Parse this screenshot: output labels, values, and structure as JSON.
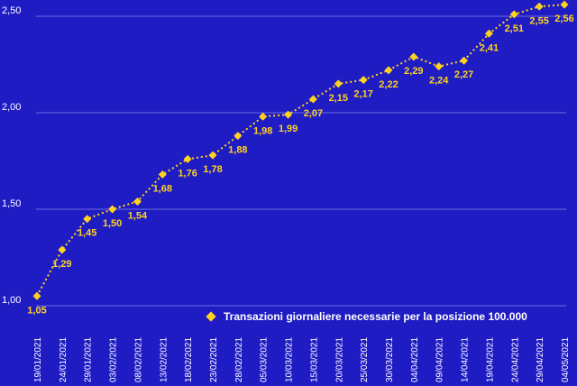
{
  "colors": {
    "background": "#1f1cc4",
    "series": "#ffd21f",
    "text": "#ffffff",
    "grid": "#6f6ce4"
  },
  "chart_data": {
    "type": "line",
    "title": "",
    "xlabel": "",
    "ylabel": "",
    "ylim": [
      1.0,
      2.5
    ],
    "yticks": [
      "1,00",
      "1,50",
      "2,00",
      "2,50"
    ],
    "grid": true,
    "legend_position": "bottom-right",
    "categories": [
      "19/01/2021",
      "24/01/2021",
      "29/01/2021",
      "03/02/2021",
      "08/02/2021",
      "13/02/2021",
      "18/02/2021",
      "23/02/2021",
      "28/02/2021",
      "05/03/2021",
      "10/03/2021",
      "15/03/2021",
      "20/03/2021",
      "25/03/2021",
      "30/03/2021",
      "04/04/2021",
      "09/04/2021",
      "14/04/2021",
      "19/04/2021",
      "24/04/2021",
      "29/04/2021",
      "04/05/2021"
    ],
    "series": [
      {
        "name": "Transazioni giornaliere necessarie per la posizione 100.000",
        "values": [
          1.05,
          1.29,
          1.45,
          1.5,
          1.54,
          1.68,
          1.76,
          1.78,
          1.88,
          1.98,
          1.99,
          2.07,
          2.15,
          2.17,
          2.22,
          2.29,
          2.24,
          2.27,
          2.41,
          2.51,
          2.55,
          2.56
        ],
        "labels": [
          "1,05",
          "1,29",
          "1,45",
          "1,50",
          "1,54",
          "1,68",
          "1,76",
          "1,78",
          "1,88",
          "1,98",
          "1,99",
          "2,07",
          "2,15",
          "2,17",
          "2,22",
          "2,29",
          "2,24",
          "2,27",
          "2,41",
          "2,51",
          "2,55",
          "2,56"
        ]
      }
    ]
  }
}
